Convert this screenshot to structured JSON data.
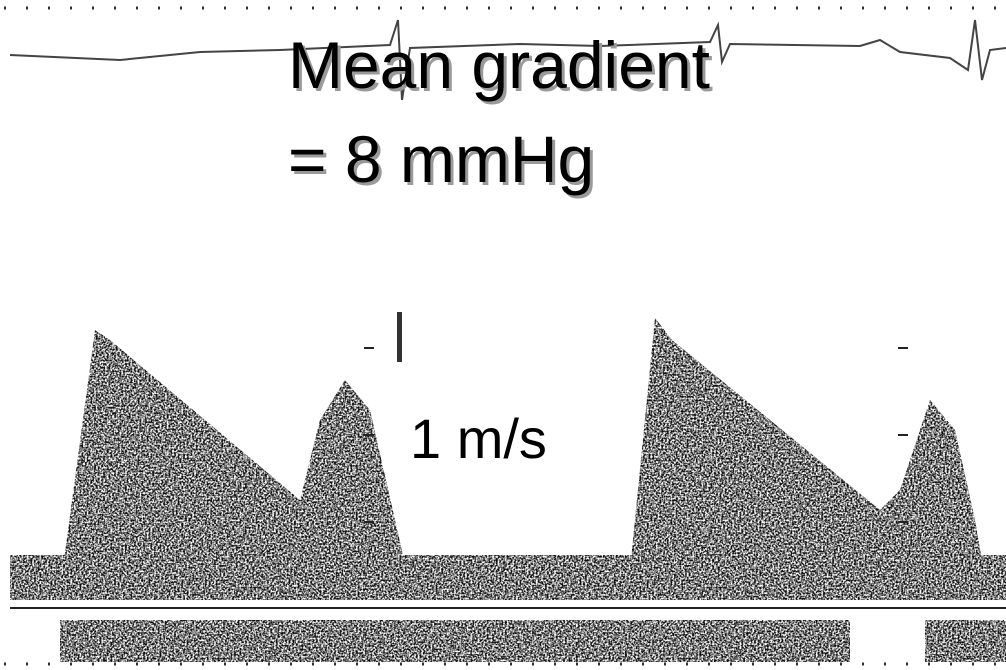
{
  "title": {
    "line1": "Mean gradient",
    "line2": "= 8 mmHg"
  },
  "scale_label": "1 m/s"
}
